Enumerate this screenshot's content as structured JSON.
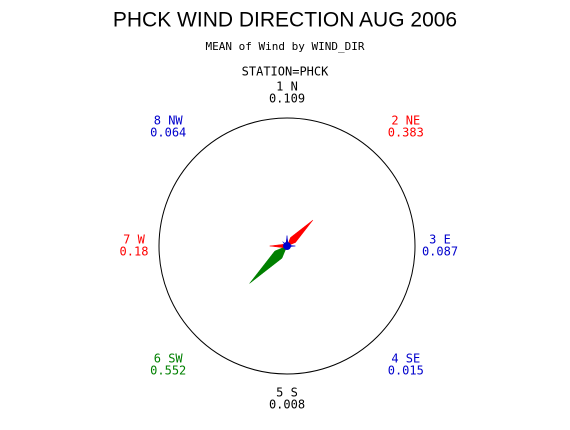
{
  "chart_data": {
    "type": "star",
    "title": "PHCK WIND DIRECTION AUG 2006",
    "subtitle": "MEAN of Wind by WIND_DIR",
    "group_label": "STATION=PHCK",
    "categories": [
      "1 N",
      "2 NE",
      "3 E",
      "4 SE",
      "5 S",
      "6 SW",
      "7 W",
      "8 NW"
    ],
    "values": [
      0.109,
      0.383,
      0.087,
      0.015,
      0.008,
      0.552,
      0.18,
      0.064
    ],
    "colors": [
      "#000000",
      "#ff0000",
      "#0000cc",
      "#0000cc",
      "#000000",
      "#008000",
      "#ff0000",
      "#0000cc"
    ]
  }
}
